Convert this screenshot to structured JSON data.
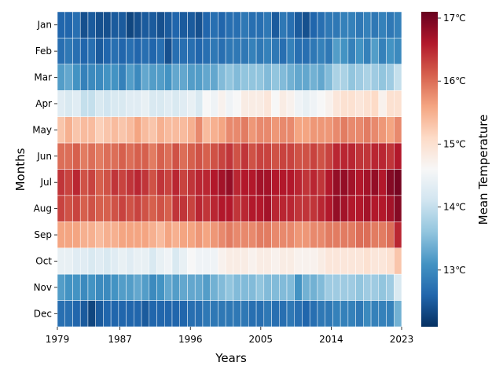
{
  "chart_data": {
    "type": "heatmap",
    "xlabel": "Years",
    "ylabel": "Months",
    "colorbar_label": "Mean Temperature",
    "colormap": "RdBu_r",
    "colorbar_range": [
      12.1,
      17.1
    ],
    "colorbar_ticks": [
      "13℃",
      "14℃",
      "15℃",
      "16℃",
      "17℃"
    ],
    "colorbar_tick_values": [
      13,
      14,
      15,
      16,
      17
    ],
    "x_tick_labels": [
      "1979",
      "1987",
      "1996",
      "2005",
      "2014",
      "2023"
    ],
    "x_tick_years": [
      1979,
      1987,
      1996,
      2005,
      2014,
      2023
    ],
    "years": [
      1979,
      1980,
      1981,
      1982,
      1983,
      1984,
      1985,
      1986,
      1987,
      1988,
      1989,
      1990,
      1991,
      1992,
      1993,
      1994,
      1995,
      1996,
      1997,
      1998,
      1999,
      2000,
      2001,
      2002,
      2003,
      2004,
      2005,
      2006,
      2007,
      2008,
      2009,
      2010,
      2011,
      2012,
      2013,
      2014,
      2015,
      2016,
      2017,
      2018,
      2019,
      2020,
      2021,
      2022,
      2023
    ],
    "months": [
      "Jan",
      "Feb",
      "Mar",
      "Apr",
      "May",
      "Jun",
      "Jul",
      "Aug",
      "Sep",
      "Oct",
      "Nov",
      "Dec"
    ],
    "values": [
      [
        12.6,
        12.6,
        12.7,
        12.4,
        12.5,
        12.4,
        12.4,
        12.5,
        12.5,
        12.3,
        12.4,
        12.5,
        12.5,
        12.4,
        12.5,
        12.6,
        12.5,
        12.5,
        12.4,
        12.6,
        12.7,
        12.6,
        12.7,
        12.7,
        12.8,
        12.7,
        12.7,
        12.8,
        12.5,
        12.8,
        12.7,
        12.5,
        12.4,
        12.6,
        12.7,
        12.8,
        12.8,
        12.9,
        12.9,
        12.8,
        12.9,
        12.8,
        12.9,
        12.8,
        12.9
      ],
      [
        12.7,
        12.8,
        12.7,
        12.6,
        12.7,
        12.5,
        12.6,
        12.7,
        12.6,
        12.7,
        12.6,
        12.7,
        12.6,
        12.7,
        12.4,
        12.7,
        12.7,
        12.7,
        12.6,
        12.7,
        12.8,
        12.7,
        12.8,
        12.8,
        12.8,
        12.9,
        12.8,
        12.9,
        12.8,
        12.7,
        12.9,
        12.7,
        12.7,
        12.8,
        12.9,
        12.8,
        13.2,
        13.1,
        12.9,
        13.1,
        12.9,
        13.2,
        12.9,
        13.1,
        13.0
      ],
      [
        13.2,
        13.3,
        13.1,
        12.9,
        13.0,
        13.0,
        13.1,
        13.1,
        12.9,
        13.2,
        13.0,
        13.3,
        13.2,
        13.2,
        13.1,
        13.3,
        13.3,
        13.2,
        13.2,
        13.3,
        13.3,
        13.5,
        13.6,
        13.5,
        13.6,
        13.6,
        13.6,
        13.5,
        13.6,
        13.5,
        13.4,
        13.3,
        13.3,
        13.4,
        13.3,
        13.5,
        13.8,
        13.8,
        13.6,
        13.7,
        13.8,
        13.7,
        13.6,
        13.7,
        14.0
      ],
      [
        14.3,
        14.2,
        14.3,
        14.0,
        14.0,
        14.2,
        14.1,
        14.2,
        14.2,
        14.3,
        14.3,
        14.4,
        14.2,
        14.2,
        14.3,
        14.2,
        14.3,
        14.4,
        14.2,
        14.6,
        14.5,
        14.7,
        14.5,
        14.6,
        14.8,
        14.8,
        14.8,
        14.9,
        14.6,
        14.8,
        14.7,
        14.5,
        14.4,
        14.5,
        14.6,
        14.7,
        14.9,
        15.0,
        15.0,
        14.9,
        15.0,
        15.1,
        14.7,
        15.0,
        15.0
      ],
      [
        15.3,
        15.5,
        15.3,
        15.4,
        15.4,
        15.2,
        15.3,
        15.4,
        15.3,
        15.4,
        15.6,
        15.4,
        15.3,
        15.5,
        15.4,
        15.4,
        15.4,
        15.5,
        15.8,
        15.4,
        15.5,
        15.6,
        15.8,
        15.8,
        15.9,
        15.7,
        15.8,
        15.8,
        15.7,
        15.8,
        15.8,
        15.6,
        15.6,
        15.7,
        15.7,
        15.7,
        15.8,
        15.9,
        15.8,
        15.8,
        15.9,
        15.8,
        15.7,
        15.6,
        15.8
      ],
      [
        16.0,
        16.0,
        16.1,
        15.9,
        16.0,
        15.9,
        16.0,
        16.0,
        16.1,
        16.0,
        16.1,
        16.1,
        15.9,
        16.1,
        16.0,
        16.2,
        16.0,
        16.1,
        16.2,
        16.1,
        16.2,
        16.3,
        16.4,
        16.2,
        16.4,
        16.2,
        16.3,
        16.3,
        16.2,
        16.3,
        16.3,
        16.2,
        16.2,
        16.3,
        16.2,
        16.3,
        16.5,
        16.5,
        16.5,
        16.4,
        16.4,
        16.5,
        16.5,
        16.4,
        16.6
      ],
      [
        16.4,
        16.3,
        16.5,
        16.2,
        16.3,
        16.1,
        16.2,
        16.4,
        16.3,
        16.4,
        16.5,
        16.4,
        16.2,
        16.4,
        16.3,
        16.5,
        16.3,
        16.4,
        16.5,
        16.5,
        16.6,
        16.7,
        16.8,
        16.5,
        16.6,
        16.6,
        16.7,
        16.7,
        16.6,
        16.6,
        16.6,
        16.5,
        16.4,
        16.5,
        16.4,
        16.6,
        16.8,
        16.8,
        16.7,
        16.6,
        16.7,
        16.8,
        16.6,
        16.9,
        17.0
      ],
      [
        16.3,
        16.2,
        16.3,
        16.1,
        16.2,
        16.1,
        16.1,
        16.2,
        16.3,
        16.2,
        16.3,
        16.2,
        16.1,
        16.2,
        16.1,
        16.4,
        16.4,
        16.3,
        16.5,
        16.4,
        16.5,
        16.6,
        16.6,
        16.4,
        16.5,
        16.6,
        16.6,
        16.7,
        16.5,
        16.5,
        16.5,
        16.4,
        16.4,
        16.4,
        16.5,
        16.6,
        16.8,
        16.7,
        16.6,
        16.6,
        16.7,
        16.6,
        16.6,
        16.7,
        16.9
      ],
      [
        15.6,
        15.6,
        15.6,
        15.5,
        15.5,
        15.4,
        15.5,
        15.5,
        15.6,
        15.6,
        15.6,
        15.6,
        15.5,
        15.4,
        15.6,
        15.5,
        15.6,
        15.6,
        15.7,
        15.6,
        15.7,
        15.8,
        15.9,
        15.8,
        15.8,
        15.8,
        15.9,
        15.9,
        15.8,
        15.8,
        15.8,
        15.7,
        15.7,
        15.8,
        15.8,
        15.9,
        15.9,
        15.9,
        15.9,
        16.0,
        16.0,
        15.9,
        15.9,
        16.0,
        16.5
      ],
      [
        14.4,
        14.4,
        14.3,
        14.3,
        14.2,
        14.3,
        14.2,
        14.3,
        14.4,
        14.3,
        14.4,
        14.4,
        14.2,
        14.4,
        14.5,
        14.2,
        14.4,
        14.6,
        14.5,
        14.5,
        14.5,
        14.7,
        14.8,
        14.8,
        14.8,
        14.7,
        14.8,
        14.8,
        14.7,
        14.8,
        14.8,
        14.7,
        14.7,
        14.7,
        14.8,
        14.9,
        14.9,
        14.9,
        14.9,
        14.9,
        15.0,
        14.9,
        14.9,
        15.0,
        15.3
      ],
      [
        13.2,
        13.1,
        13.1,
        13.0,
        13.1,
        13.0,
        13.0,
        13.1,
        13.2,
        13.2,
        13.3,
        13.2,
        13.0,
        13.1,
        13.3,
        13.2,
        13.3,
        13.3,
        13.3,
        13.2,
        13.4,
        13.5,
        13.6,
        13.5,
        13.5,
        13.5,
        13.6,
        13.5,
        13.5,
        13.5,
        13.5,
        13.1,
        13.4,
        13.4,
        13.5,
        13.7,
        13.7,
        13.7,
        13.7,
        13.6,
        13.7,
        13.7,
        13.6,
        13.7,
        14.2
      ],
      [
        12.7,
        12.7,
        12.6,
        12.5,
        12.3,
        12.5,
        12.6,
        12.6,
        12.6,
        12.6,
        12.6,
        12.5,
        12.6,
        12.6,
        12.6,
        12.6,
        12.6,
        12.7,
        12.7,
        12.8,
        12.8,
        12.8,
        12.8,
        12.8,
        12.8,
        12.7,
        12.7,
        12.8,
        12.7,
        12.7,
        12.8,
        12.7,
        12.6,
        12.7,
        12.8,
        12.8,
        12.9,
        12.9,
        12.9,
        12.8,
        13.0,
        12.9,
        12.9,
        12.9,
        13.4
      ]
    ]
  }
}
